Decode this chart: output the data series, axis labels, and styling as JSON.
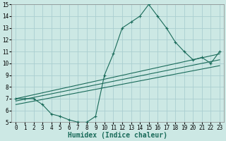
{
  "xlabel": "Humidex (Indice chaleur)",
  "ylabel": "",
  "bg_color": "#cce8e4",
  "grid_color": "#aaced0",
  "line_color": "#1a6b5a",
  "xlim": [
    -0.5,
    23.5
  ],
  "ylim": [
    5,
    15
  ],
  "xticks": [
    0,
    1,
    2,
    3,
    4,
    5,
    6,
    7,
    8,
    9,
    10,
    11,
    12,
    13,
    14,
    15,
    16,
    17,
    18,
    19,
    20,
    21,
    22,
    23
  ],
  "yticks": [
    5,
    6,
    7,
    8,
    9,
    10,
    11,
    12,
    13,
    14,
    15
  ],
  "main_x": [
    0,
    1,
    2,
    3,
    4,
    5,
    6,
    7,
    8,
    9,
    10,
    11,
    12,
    13,
    14,
    15,
    16,
    17,
    18,
    19,
    20,
    21,
    22,
    23
  ],
  "main_y": [
    7.0,
    7.0,
    7.0,
    6.5,
    5.7,
    5.5,
    5.2,
    5.0,
    5.0,
    5.5,
    9.0,
    10.8,
    13.0,
    13.5,
    14.0,
    15.0,
    14.0,
    13.0,
    11.8,
    11.0,
    10.3,
    10.5,
    10.0,
    11.0
  ],
  "line1_x": [
    0,
    23
  ],
  "line1_y": [
    7.0,
    10.8
  ],
  "line2_x": [
    0,
    23
  ],
  "line2_y": [
    6.8,
    10.3
  ],
  "line3_x": [
    0,
    23
  ],
  "line3_y": [
    6.5,
    9.8
  ],
  "tick_fontsize": 5.5,
  "label_fontsize": 7
}
